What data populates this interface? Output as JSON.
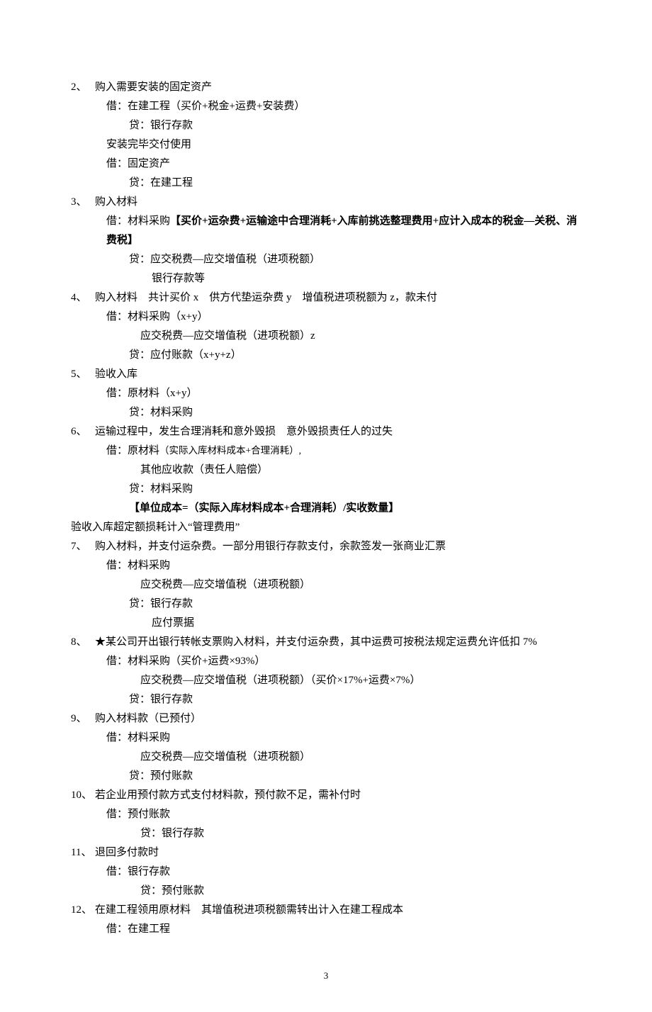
{
  "items": [
    {
      "num": "2、",
      "lines": [
        {
          "cls": "",
          "text": "购入需要安装的固定资产"
        },
        {
          "cls": "indent-jie",
          "text": "借：在建工程（买价+税金+运费+安装费）"
        },
        {
          "cls": "indent-dai",
          "text": "贷：银行存款"
        },
        {
          "cls": "indent-jie",
          "text": "安装完毕交付使用"
        },
        {
          "cls": "indent-jie",
          "text": "借：固定资产"
        },
        {
          "cls": "indent-dai",
          "text": "贷：在建工程"
        }
      ]
    },
    {
      "num": "3、",
      "lines": [
        {
          "cls": "",
          "text": "购入材料"
        },
        {
          "cls": "indent-jie",
          "segs": [
            {
              "text": "借：材料采购",
              "bold": false
            },
            {
              "text": "【买价+运杂费+运输途中合理消耗+入库前挑选整理费用+应计入成本的税金—关税、消费税】",
              "bold": true
            }
          ]
        },
        {
          "cls": "indent-dai",
          "text": "贷：应交税费—应交增值税（进项税额）"
        },
        {
          "cls": "indent-more",
          "text": "银行存款等"
        }
      ]
    },
    {
      "num": "4、",
      "lines": [
        {
          "cls": "",
          "text": "购入材料　共计买价 x　供方代垫运杂费 y　增值税进项税额为 z，款未付"
        },
        {
          "cls": "indent-jie",
          "text": "借：材料采购（x+y）"
        },
        {
          "cls": "indent-sub",
          "text": "应交税费—应交增值税（进项税额）z"
        },
        {
          "cls": "indent-dai",
          "text": "贷：应付账款（x+y+z）"
        }
      ]
    },
    {
      "num": "5、",
      "lines": [
        {
          "cls": "",
          "text": "验收入库"
        },
        {
          "cls": "indent-jie",
          "text": "借：原材料（x+y）"
        },
        {
          "cls": "indent-dai",
          "text": "贷：材料采购"
        }
      ]
    },
    {
      "num": "6、",
      "lines": [
        {
          "cls": "",
          "text": "运输过程中，发生合理消耗和意外毁损　意外毁损责任人的过失"
        },
        {
          "cls": "indent-jie",
          "segs": [
            {
              "text": "借：原材料",
              "bold": false
            },
            {
              "text": "（实际入库材料成本+合理消耗）,",
              "small": true
            }
          ]
        },
        {
          "cls": "indent-sub",
          "text": "其他应收款（责任人赔偿）"
        },
        {
          "cls": "indent-dai",
          "text": "贷：材料采购"
        },
        {
          "cls": "indent-dai bold",
          "text": "【单位成本=（实际入库材料成本+合理消耗）/实收数量】"
        },
        {
          "cls": "unindent",
          "text": "验收入库超定额损耗计入“管理费用”"
        }
      ]
    },
    {
      "num": "7、",
      "lines": [
        {
          "cls": "",
          "text": "购入材料，并支付运杂费。一部分用银行存款支付，余款签发一张商业汇票"
        },
        {
          "cls": "indent-jie",
          "text": "借：材料采购"
        },
        {
          "cls": "indent-sub",
          "text": "应交税费—应交增值税（进项税额）"
        },
        {
          "cls": "indent-dai",
          "text": "贷：银行存款"
        },
        {
          "cls": "indent-more",
          "text": "应付票据"
        }
      ]
    },
    {
      "num": "8、",
      "lines": [
        {
          "cls": "",
          "text": "★某公司开出银行转帐支票购入材料，并支付运杂费，其中运费可按税法规定运费允许低扣 7%"
        },
        {
          "cls": "indent-jie",
          "text": "借：材料采购（买价+运费×93%）"
        },
        {
          "cls": "indent-sub",
          "text": "应交税费—应交增值税（进项税额）（买价×17%+运费×7%）"
        },
        {
          "cls": "indent-dai",
          "text": "贷：银行存款"
        }
      ]
    },
    {
      "num": "9、",
      "lines": [
        {
          "cls": "",
          "text": "购入材料款（已预付）"
        },
        {
          "cls": "indent-jie",
          "text": "借：材料采购"
        },
        {
          "cls": "indent-sub",
          "text": "应交税费—应交增值税（进项税额）"
        },
        {
          "cls": "indent-dai",
          "text": "贷：预付账款"
        }
      ]
    },
    {
      "num": "10、",
      "lines": [
        {
          "cls": "",
          "text": "若企业用预付款方式支付材料款，预付款不足，需补付时"
        },
        {
          "cls": "indent-jie",
          "text": "借：预付账款"
        },
        {
          "cls": "indent-sub",
          "text": "贷：银行存款"
        }
      ]
    },
    {
      "num": "11、",
      "lines": [
        {
          "cls": "",
          "text": "退回多付款时"
        },
        {
          "cls": "indent-jie",
          "text": "借：银行存款"
        },
        {
          "cls": "indent-sub",
          "text": "贷：预付账款"
        }
      ]
    },
    {
      "num": "12、",
      "lines": [
        {
          "cls": "",
          "text": "在建工程领用原材料　其增值税进项税额需转出计入在建工程成本"
        },
        {
          "cls": "indent-jie",
          "text": "借：在建工程"
        }
      ]
    }
  ],
  "pageNumber": "3"
}
